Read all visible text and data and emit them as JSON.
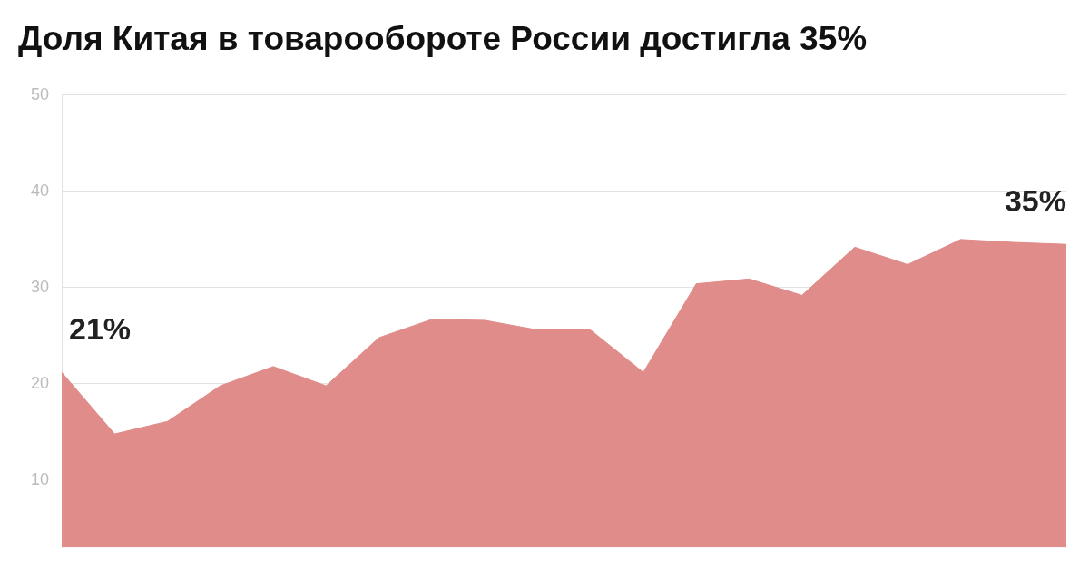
{
  "chart_data": {
    "type": "area",
    "title": "Доля Китая в товарообороте России достигла 35%",
    "categories": [
      null,
      null,
      null,
      null,
      null,
      null,
      null,
      null,
      null,
      null,
      null,
      null,
      null,
      null,
      null,
      null,
      null,
      null,
      null,
      null
    ],
    "series": [
      {
        "color": "#e08c8a",
        "values": [
          21.2,
          14.8,
          16.1,
          19.8,
          21.8,
          19.8,
          24.8,
          26.7,
          26.6,
          25.6,
          25.6,
          21.2,
          30.4,
          30.9,
          29.2,
          34.2,
          32.4,
          35.0,
          34.7,
          34.5
        ]
      }
    ],
    "annotations": [
      "21%",
      "35%"
    ],
    "ylim": [
      3,
      50
    ],
    "yticks": [
      10,
      20,
      30,
      40,
      50
    ],
    "grid": "y",
    "legend": false,
    "marker": "none",
    "tick_labels": "y"
  }
}
